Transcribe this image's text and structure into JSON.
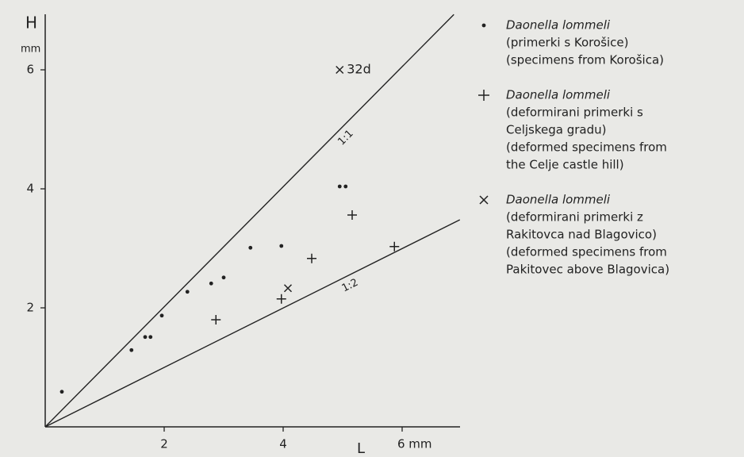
{
  "chart_data": {
    "type": "scatter",
    "ylabel": "H",
    "yunit": "mm",
    "xlabel": "L",
    "xlim": [
      0,
      7
    ],
    "ylim": [
      0,
      7
    ],
    "xticks": [
      2,
      4,
      {
        "value": 6,
        "label": "6 mm"
      }
    ],
    "yticks": [
      2,
      4,
      6
    ],
    "color": "#222222",
    "series": [
      {
        "name": "Daonella lommeli",
        "marker": "dot",
        "description": [
          "(primerki s Korošice)",
          "(specimens from Korošica)"
        ],
        "x": [
          0.28,
          1.45,
          1.68,
          1.77,
          1.96,
          2.39,
          2.79,
          3.0,
          3.45,
          3.97,
          4.95,
          5.05
        ],
        "y": [
          0.59,
          1.29,
          1.51,
          1.51,
          1.87,
          2.27,
          2.41,
          2.51,
          3.01,
          3.04,
          4.04,
          4.04
        ]
      },
      {
        "name": "Daonella lommeli",
        "marker": "plus",
        "description": [
          "(deformirani primerki s",
          "Celjskega gradu)",
          "(deformed specimens from",
          "the Celje castle hill)"
        ],
        "x": [
          2.87,
          3.97,
          4.48,
          5.87,
          5.16
        ],
        "y": [
          1.8,
          2.15,
          2.83,
          3.03,
          3.56
        ]
      },
      {
        "name": "Daonella lommeli",
        "marker": "cross",
        "description": [
          "(deformirani primerki z",
          "Rakitovca nad Blagovico)",
          "(deformed specimens from",
          "Pakitovec above Blagovica)"
        ],
        "x": [
          4.08,
          4.95
        ],
        "y": [
          2.33,
          6.0
        ]
      }
    ],
    "annotations": [
      {
        "text": "32d",
        "series": 2,
        "point": 1
      }
    ],
    "lines": [
      {
        "label": "1:1",
        "x": [
          0,
          6.87
        ],
        "y": [
          0,
          6.93
        ]
      },
      {
        "label": "1:2",
        "x": [
          0,
          6.97
        ],
        "y": [
          0,
          3.48
        ]
      }
    ]
  }
}
